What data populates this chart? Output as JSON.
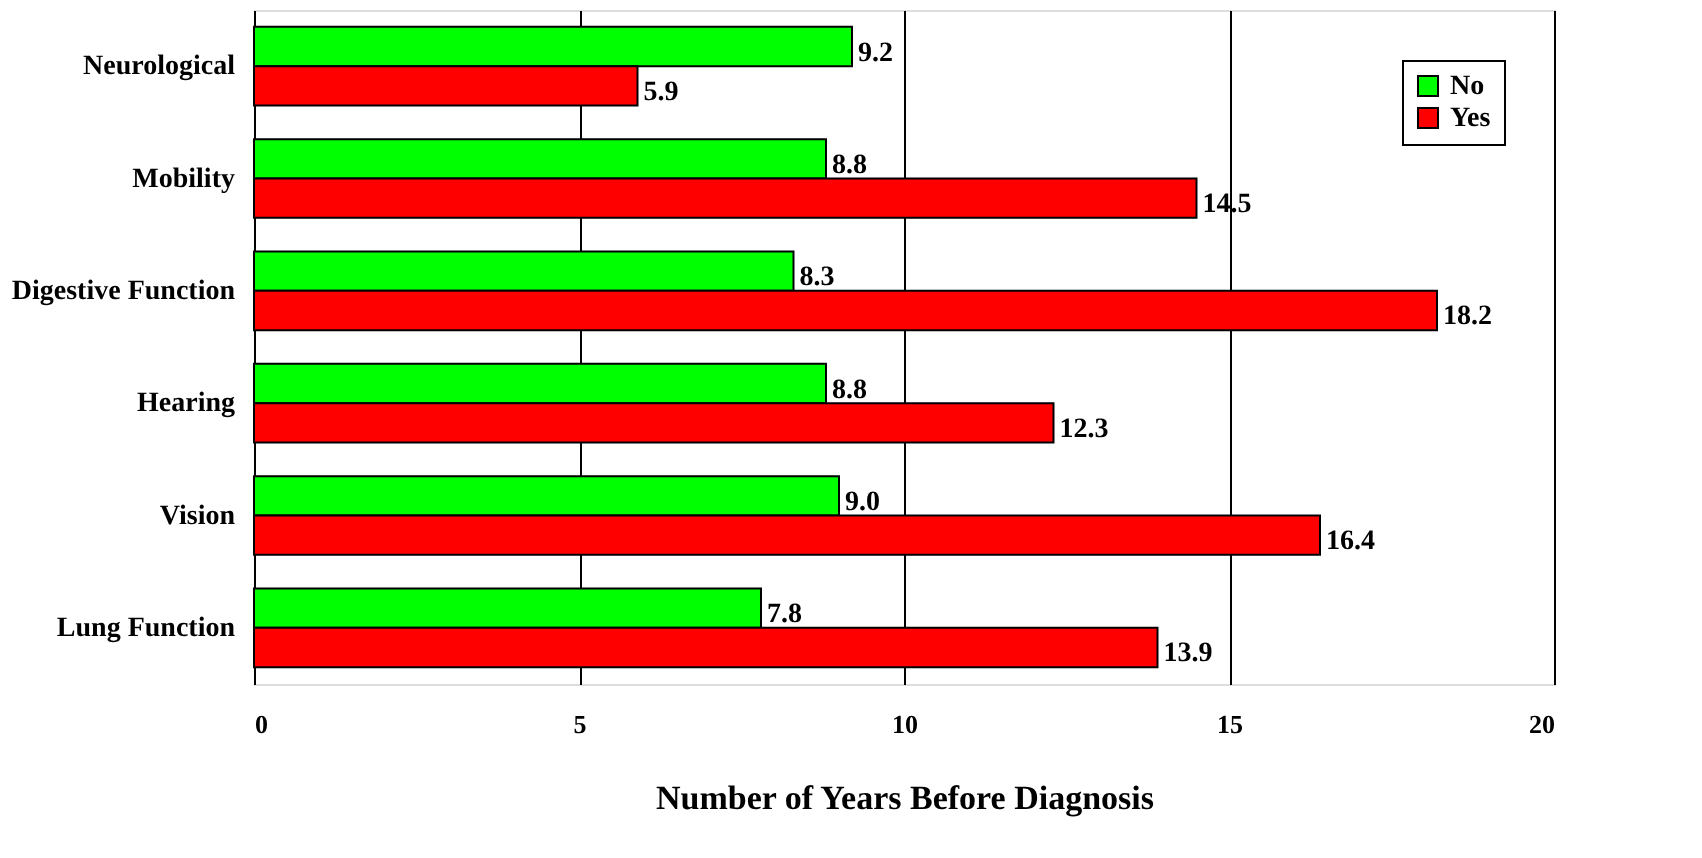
{
  "chart_data": {
    "type": "bar",
    "orientation": "horizontal",
    "xlabel": "Number of Years Before Diagnosis",
    "categories": [
      "Neurological",
      "Mobility",
      "Digestive Function",
      "Hearing",
      "Vision",
      "Lung Function"
    ],
    "series": [
      {
        "name": "No",
        "color": "#00ff00",
        "values": [
          9.2,
          8.8,
          8.3,
          8.8,
          9.0,
          7.8
        ],
        "value_labels": [
          "9.2",
          "8.8",
          "8.3",
          "8.8",
          "9.0",
          "7.8"
        ]
      },
      {
        "name": "Yes",
        "color": "#ff0000",
        "values": [
          5.9,
          14.5,
          18.2,
          12.3,
          16.4,
          13.9
        ],
        "value_labels": [
          "5.9",
          "14.5",
          "18.2",
          "12.3",
          "16.4",
          "13.9"
        ]
      }
    ],
    "xlim": [
      0,
      20
    ],
    "xticks": [
      0,
      5,
      10,
      15,
      20
    ],
    "grid": "x",
    "legend": "top right"
  }
}
